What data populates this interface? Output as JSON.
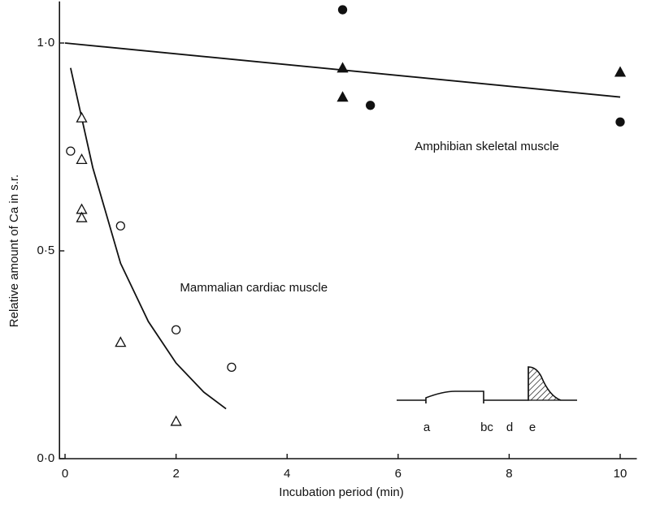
{
  "chart_data": {
    "type": "scatter",
    "x_label": "Incubation period (min)",
    "y_label": "Relative amount of Ca in s.r.",
    "xlim": [
      -0.1,
      10.3
    ],
    "ylim": [
      0,
      1.1
    ],
    "xticks": [
      0,
      2,
      4,
      6,
      8,
      10
    ],
    "yticks": [
      {
        "value": 0,
        "label": "0·0"
      },
      {
        "value": 0.5,
        "label": "0·5"
      },
      {
        "value": 1,
        "label": "1·0"
      }
    ],
    "color": "#111111",
    "series": [
      {
        "marker": "circle",
        "filled": true,
        "x": [
          5,
          5.5,
          10
        ],
        "values": [
          1.08,
          0.85,
          0.81
        ]
      },
      {
        "marker": "triangle",
        "filled": true,
        "x": [
          5,
          5,
          10
        ],
        "values": [
          0.94,
          0.87,
          0.93
        ]
      },
      {
        "marker": "circle",
        "filled": false,
        "x": [
          0.1,
          1,
          2,
          3
        ],
        "values": [
          0.74,
          0.56,
          0.31,
          0.22
        ]
      },
      {
        "marker": "triangle",
        "filled": false,
        "x": [
          0.3,
          0.3,
          0.3,
          0.3,
          1,
          2
        ],
        "values": [
          0.82,
          0.72,
          0.6,
          0.58,
          0.28,
          0.09
        ]
      }
    ],
    "lines": [
      {
        "x": [
          0,
          10
        ],
        "values": [
          1.0,
          0.87
        ]
      },
      {
        "x": [
          0.1,
          0.5,
          1,
          1.5,
          2,
          2.5,
          2.9
        ],
        "values": [
          0.94,
          0.7,
          0.47,
          0.33,
          0.23,
          0.16,
          0.12
        ]
      }
    ],
    "annotations": [
      {
        "text": "Amphibian skeletal muscle",
        "x": 7.6,
        "y": 0.75
      },
      {
        "text": "Mammalian cardiac muscle",
        "x": 3.4,
        "y": 0.41
      }
    ],
    "inset_labels": [
      "a",
      "bc",
      "d",
      "e"
    ]
  }
}
